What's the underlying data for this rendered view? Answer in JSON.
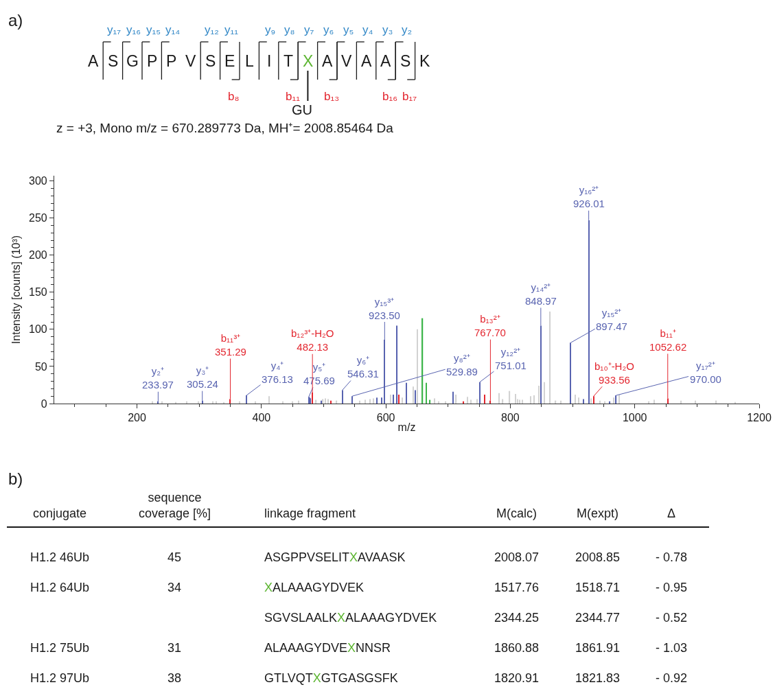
{
  "chart_data": [
    {
      "type": "other",
      "title": "a)",
      "categories": [
        "A",
        "S",
        "G",
        "P",
        "P",
        "V",
        "S",
        "E",
        "L",
        "I",
        "T",
        "X",
        "A",
        "V",
        "A",
        "A",
        "S",
        "K"
      ],
      "colors": [
        "#1a1a1a",
        "#1a1a1a",
        "#1a1a1a",
        "#1a1a1a",
        "#1a1a1a",
        "#1a1a1a",
        "#1a1a1a",
        "#1a1a1a",
        "#1a1a1a",
        "#1a1a1a",
        "#1a1a1a",
        "#5cb531",
        "#1a1a1a",
        "#1a1a1a",
        "#1a1a1a",
        "#1a1a1a",
        "#1a1a1a",
        "#1a1a1a"
      ],
      "cell_labels": [
        [
          null,
          "y₁₇",
          "y₁₆",
          "y₁₅",
          "y₁₄",
          null,
          "y₁₂",
          "y₁₁",
          null,
          "y₉",
          "y₈",
          "y₇",
          "y₆",
          "y₅",
          "y₄",
          "y₃",
          "y₂",
          null
        ],
        [
          null,
          null,
          null,
          null,
          null,
          null,
          null,
          "b₈",
          null,
          null,
          "b₁₁",
          null,
          "b₁₃",
          null,
          null,
          "b₁₆",
          "b₁₇",
          null
        ]
      ],
      "annotations": [
        {
          "text": "GU",
          "x": "X"
        },
        "z = +3, Mono m/z = 670.289773 Da, MH⁺= 2008.85464 Da"
      ]
    },
    {
      "type": "bar",
      "xlabel": "m/z",
      "ylabel": "Intensity [counts] (10³)",
      "xlim": [
        67,
        1200
      ],
      "ylim": [
        0,
        307
      ],
      "xticks": [
        {
          "value": 100,
          "label": null
        },
        {
          "value": 150,
          "label": null
        },
        200,
        {
          "value": 250,
          "label": null
        },
        {
          "value": 300,
          "label": null
        },
        {
          "value": 350,
          "label": null
        },
        400,
        {
          "value": 450,
          "label": null
        },
        {
          "value": 500,
          "label": null
        },
        {
          "value": 550,
          "label": null
        },
        600,
        {
          "value": 650,
          "label": null
        },
        {
          "value": 700,
          "label": null
        },
        {
          "value": 750,
          "label": null
        },
        800,
        {
          "value": 850,
          "label": null
        },
        {
          "value": 900,
          "label": null
        },
        {
          "value": 950,
          "label": null
        },
        1000,
        {
          "value": 1050,
          "label": null
        },
        {
          "value": 1100,
          "label": null
        },
        {
          "value": 1150,
          "label": null
        },
        1200
      ],
      "yticks": [
        0,
        {
          "value": 10,
          "label": null
        },
        {
          "value": 20,
          "label": null
        },
        {
          "value": 30,
          "label": null
        },
        {
          "value": 40,
          "label": null
        },
        50,
        {
          "value": 60,
          "label": null
        },
        {
          "value": 70,
          "label": null
        },
        {
          "value": 80,
          "label": null
        },
        {
          "value": 90,
          "label": null
        },
        100,
        {
          "value": 110,
          "label": null
        },
        {
          "value": 120,
          "label": null
        },
        {
          "value": 130,
          "label": null
        },
        {
          "value": 140,
          "label": null
        },
        150,
        {
          "value": 160,
          "label": null
        },
        {
          "value": 170,
          "label": null
        },
        {
          "value": 180,
          "label": null
        },
        {
          "value": 190,
          "label": null
        },
        200,
        {
          "value": 210,
          "label": null
        },
        {
          "value": 220,
          "label": null
        },
        {
          "value": 230,
          "label": null
        },
        {
          "value": 240,
          "label": null
        },
        250,
        {
          "value": 260,
          "label": null
        },
        {
          "value": 270,
          "label": null
        },
        {
          "value": 280,
          "label": null
        },
        {
          "value": 290,
          "label": null
        },
        300
      ],
      "series": [
        {
          "color": "#5863b0",
          "x": [
            234,
            305,
            376,
            476,
            478,
            479,
            496,
            530,
            546,
            586,
            593,
            598,
            612,
            618,
            633,
            647,
            708,
            751,
            849,
            897,
            918,
            926,
            960,
            970
          ],
          "values": [
            3,
            4,
            11,
            9,
            8,
            7,
            4,
            18,
            10,
            8,
            8,
            86,
            12,
            105,
            28,
            18,
            16,
            29,
            105,
            82,
            6,
            247,
            3,
            11
          ]
        },
        {
          "color": "#e3262f",
          "x": [
            350,
            482,
            512,
            621,
            725,
            759,
            768,
            934,
            1053
          ],
          "values": [
            6,
            15,
            4,
            12,
            3,
            12,
            4,
            10,
            7
          ]
        },
        {
          "color": "#3db54a",
          "x": [
            659,
            665,
            671
          ],
          "values": [
            115,
            28,
            5
          ]
        },
        {
          "color": "#d2d2d2",
          "x": [
            225,
            240,
            262,
            280,
            299,
            322,
            327,
            340,
            365,
            390,
            412,
            434,
            450,
            460,
            488,
            499,
            503,
            507,
            521,
            558,
            567,
            575,
            580,
            608,
            626,
            644,
            651,
            678,
            685,
            696,
            713,
            731,
            737,
            747,
            782,
            788,
            799,
            808,
            812,
            815,
            819,
            833,
            838,
            846,
            855,
            864,
            873,
            881,
            904,
            910,
            930,
            944,
            952,
            966,
            975,
            1023,
            1031,
            1074,
            1097,
            1131,
            1161
          ],
          "values": [
            3,
            3,
            2,
            3,
            3,
            3,
            3,
            2,
            3,
            3,
            10,
            3,
            3,
            4,
            5,
            6,
            7,
            6,
            4,
            4,
            5,
            6,
            7,
            12,
            8,
            23,
            100,
            7,
            3,
            3,
            12,
            9,
            5,
            6,
            14,
            6,
            17,
            13,
            6,
            5,
            5,
            10,
            11,
            24,
            29,
            124,
            4,
            4,
            12,
            8,
            7,
            4,
            3,
            8,
            12,
            3,
            5,
            4,
            4,
            4,
            2
          ]
        }
      ],
      "annotations": [
        {
          "text": "y₂⁺\n233.97",
          "x": 234,
          "y": 3
        },
        {
          "text": "y₃⁺\n305.24",
          "x": 305,
          "y": 4
        },
        {
          "text": "b₁₁³⁺\n351.29",
          "x": 350,
          "y": 6
        },
        {
          "text": "y₄⁺\n376.13",
          "x": 376,
          "y": 11
        },
        {
          "text": "y₅⁺\n475.69",
          "x": 476,
          "y": 9
        },
        {
          "text": "b₁₂³⁺-H₂O\n482.13",
          "x": 482,
          "y": 15
        },
        {
          "text": "y₆⁺\n546.31",
          "x": 530,
          "y": 18
        },
        {
          "text": "y₈²⁺\n529.89",
          "x": 546,
          "y": 10
        },
        {
          "text": "y₁₅³⁺\n923.50",
          "x": 598,
          "y": 86
        },
        {
          "text": "y₁₂²⁺\n751.01",
          "x": 751,
          "y": 29
        },
        {
          "text": "b₁₃²⁺\n767.70",
          "x": 768,
          "y": 4
        },
        {
          "text": "y₁₄²⁺\n848.97",
          "x": 849,
          "y": 105
        },
        {
          "text": "y₁₅²⁺\n897.47",
          "x": 897,
          "y": 82
        },
        {
          "text": "y₁₆²⁺\n926.01",
          "x": 926,
          "y": 247
        },
        {
          "text": "b₁₀⁺-H₂O\n933.56",
          "x": 934,
          "y": 10
        },
        {
          "text": "y₁₇²⁺\n970.00",
          "x": 970,
          "y": 11
        },
        {
          "text": "b₁₁⁺\n1052.62",
          "x": 1053,
          "y": 7
        }
      ]
    },
    {
      "type": "other",
      "title": "b)",
      "categories": [
        "conjugate",
        "sequence\ncoverage [%]",
        "linkage fragment",
        "M(calc)",
        "M(expt)",
        "Δ"
      ],
      "cell_labels": [
        [
          "H1.2 46Ub",
          "45",
          "ASGPPVSELITXAVAASK",
          "2008.07",
          "2008.85",
          "- 0.78"
        ],
        [
          "H1.2 64Ub",
          "34",
          "XALAAAGYDVEK",
          "1517.76",
          "1518.71",
          "- 0.95"
        ],
        [
          null,
          null,
          "SGVSLAALKXALAAAGYDVEK",
          "2344.25",
          "2344.77",
          "- 0.52"
        ],
        [
          "H1.2 75Ub",
          "31",
          "ALAAAGYDVEXNNSR",
          "1860.88",
          "1861.91",
          "- 1.03"
        ],
        [
          "H1.2 97Ub",
          "38",
          "GTLVQTXGTGASGSFK",
          "1820.91",
          "1821.83",
          "- 0.92"
        ]
      ]
    }
  ]
}
